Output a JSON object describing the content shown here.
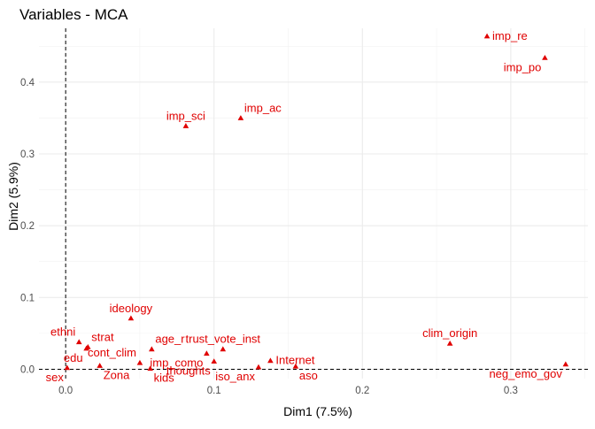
{
  "chart_data": {
    "type": "scatter",
    "title": "Variables - MCA",
    "xlabel": "Dim1 (7.5%)",
    "ylabel": "Dim2 (5.9%)",
    "xlim": [
      -0.018,
      0.352
    ],
    "ylim": [
      -0.013,
      0.475
    ],
    "x_ticks": [
      0.0,
      0.1,
      0.2,
      0.3
    ],
    "x_tick_labels": [
      "0.0",
      "0.1",
      "0.2",
      "0.3"
    ],
    "y_ticks": [
      0.0,
      0.1,
      0.2,
      0.3,
      0.4
    ],
    "y_tick_labels": [
      "0.0",
      "0.1",
      "0.2",
      "0.3",
      "0.4"
    ],
    "grid": true,
    "reference_lines": {
      "x": 0,
      "y": 0,
      "style": "dashed"
    },
    "point_color": "#e00000",
    "marker": "triangle",
    "points": [
      {
        "label": "imp_re",
        "x": 0.284,
        "y": 0.464,
        "label_pos": "right"
      },
      {
        "label": "imp_po",
        "x": 0.323,
        "y": 0.434,
        "label_pos": "below-left"
      },
      {
        "label": "imp_sci",
        "x": 0.081,
        "y": 0.339,
        "label_pos": "above"
      },
      {
        "label": "imp_ac",
        "x": 0.118,
        "y": 0.35,
        "label_pos": "above-right"
      },
      {
        "label": "ideology",
        "x": 0.044,
        "y": 0.071,
        "label_pos": "above"
      },
      {
        "label": "ethni",
        "x": 0.009,
        "y": 0.038,
        "label_pos": "above-left"
      },
      {
        "label": "strat",
        "x": 0.015,
        "y": 0.031,
        "label_pos": "above-right"
      },
      {
        "label": "edu",
        "x": 0.014,
        "y": 0.029,
        "label_pos": "below-left"
      },
      {
        "label": "age_r",
        "x": 0.058,
        "y": 0.028,
        "label_pos": "above-right"
      },
      {
        "label": "trust_vote_inst",
        "x": 0.106,
        "y": 0.028,
        "label_pos": "above"
      },
      {
        "label": "clim_origin",
        "x": 0.259,
        "y": 0.036,
        "label_pos": "above"
      },
      {
        "label": "cont_clim",
        "x": 0.05,
        "y": 0.009,
        "label_pos": "above-left"
      },
      {
        "label": "imp_como",
        "x": 0.095,
        "y": 0.022,
        "label_pos": "below-left"
      },
      {
        "label": "Internet",
        "x": 0.138,
        "y": 0.012,
        "label_pos": "right"
      },
      {
        "label": "sex",
        "x": 0.001,
        "y": 0.002,
        "label_pos": "below-left"
      },
      {
        "label": "Zona",
        "x": 0.023,
        "y": 0.005,
        "label_pos": "below-right"
      },
      {
        "label": "kids",
        "x": 0.057,
        "y": 0.001,
        "label_pos": "below-right"
      },
      {
        "label": "thoughts",
        "x": 0.1,
        "y": 0.011,
        "label_pos": "below-left"
      },
      {
        "label": "iso_anx",
        "x": 0.13,
        "y": 0.003,
        "label_pos": "below-left"
      },
      {
        "label": "aso",
        "x": 0.155,
        "y": 0.004,
        "label_pos": "below-right"
      },
      {
        "label": "neg_emo_gov",
        "x": 0.337,
        "y": 0.007,
        "label_pos": "below-left"
      }
    ]
  }
}
